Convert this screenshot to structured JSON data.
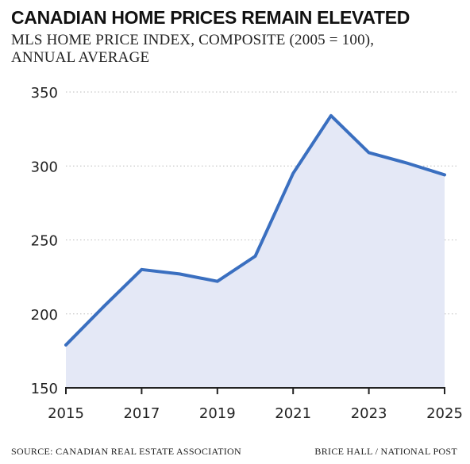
{
  "header": {
    "title": "CANADIAN HOME PRICES REMAIN ELEVATED",
    "subtitle_line1": "MLS HOME PRICE INDEX, COMPOSITE (2005 = 100),",
    "subtitle_line2": "ANNUAL AVERAGE"
  },
  "footer": {
    "source": "SOURCE: CANADIAN REAL ESTATE ASSOCIATION",
    "credit": "BRICE HALL / NATIONAL POST"
  },
  "colors": {
    "line": "#3a6fc0",
    "area": "#e4e8f6",
    "grid": "#bbbbbb",
    "axis": "#222222"
  },
  "chart_data": {
    "type": "area",
    "x": [
      2015,
      2016,
      2017,
      2018,
      2019,
      2020,
      2021,
      2022,
      2023,
      2024,
      2025
    ],
    "series": [
      {
        "values": [
          179,
          205,
          230,
          227,
          222,
          239,
          295,
          334,
          309,
          302,
          294
        ]
      }
    ],
    "xlim": [
      2015,
      2025
    ],
    "ylim": [
      150,
      350
    ],
    "yticks": [
      150,
      200,
      250,
      300,
      350
    ],
    "xticks": [
      2015,
      2017,
      2019,
      2021,
      2023,
      2025
    ],
    "grid": "horizontal dotted",
    "legend": "none"
  }
}
